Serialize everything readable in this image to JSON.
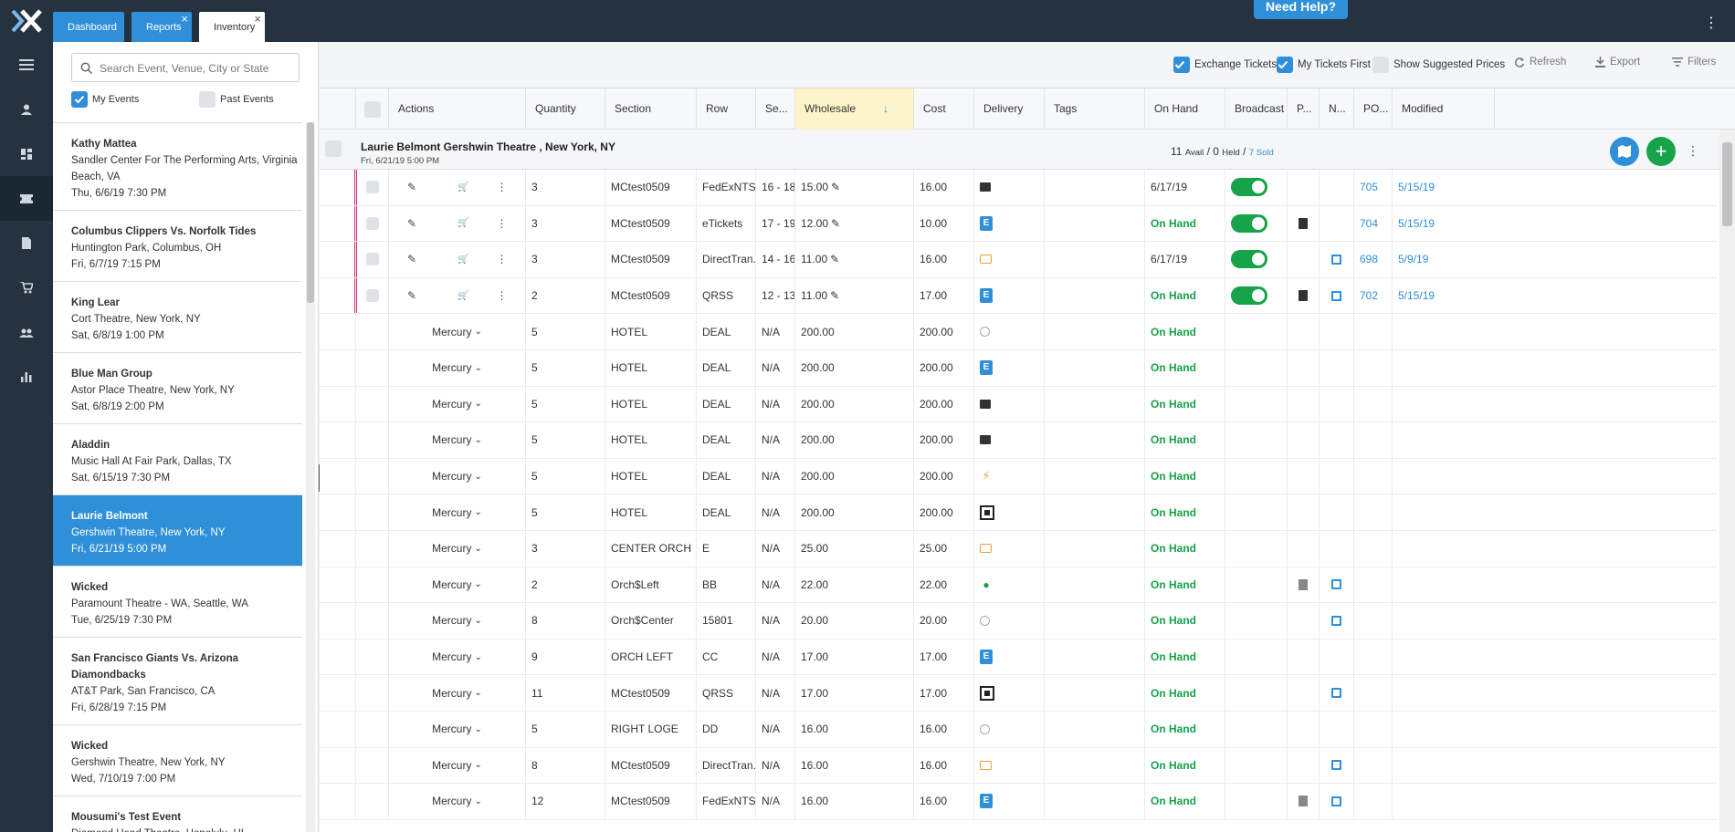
{
  "tabs": [
    {
      "label": "Dashboard",
      "closable": false
    },
    {
      "label": "Reports",
      "closable": true
    },
    {
      "label": "Inventory",
      "closable": true,
      "active": true
    }
  ],
  "help_label": "Need Help?",
  "rail": [
    "menu-icon",
    "user-icon",
    "dashboard-icon",
    "ticket-icon",
    "document-icon",
    "cart-icon",
    "group-icon",
    "chart-icon"
  ],
  "events_panel": {
    "search_placeholder": "Search Event, Venue, City or State",
    "my_events_label": "My Events",
    "past_events_label": "Past Events",
    "events": [
      {
        "name": "Kathy Mattea",
        "venue": "Sandler Center For The Performing Arts, Virginia Beach, VA",
        "date": "Thu, 6/6/19 7:30 PM"
      },
      {
        "name": "Columbus Clippers Vs. Norfolk Tides",
        "venue": "Huntington Park, Columbus, OH",
        "date": "Fri, 6/7/19 7:15 PM"
      },
      {
        "name": "King Lear",
        "venue": "Cort Theatre, New York, NY",
        "date": "Sat, 6/8/19 1:00 PM"
      },
      {
        "name": "Blue Man Group",
        "venue": "Astor Place Theatre, New York, NY",
        "date": "Sat, 6/8/19 2:00 PM"
      },
      {
        "name": "Aladdin",
        "venue": "Music Hall At Fair Park, Dallas, TX",
        "date": "Sat, 6/15/19 7:30 PM"
      },
      {
        "name": "Laurie Belmont",
        "venue": "Gershwin Theatre, New York, NY",
        "date": "Fri, 6/21/19 5:00 PM",
        "active": true
      },
      {
        "name": "Wicked",
        "venue": "Paramount Theatre - WA, Seattle, WA",
        "date": "Tue, 6/25/19 7:30 PM"
      },
      {
        "name": "San Francisco Giants Vs. Arizona Diamondbacks",
        "venue": "AT&T Park, San Francisco, CA",
        "date": "Fri, 6/28/19 7:15 PM"
      },
      {
        "name": "Wicked",
        "venue": "Gershwin Theatre, New York, NY",
        "date": "Wed, 7/10/19 7:00 PM"
      },
      {
        "name": "Mousumi's Test Event",
        "venue": "Diamond Head Theatre, Honolulu, HI",
        "date": ""
      }
    ]
  },
  "toolbar": {
    "exchange_tickets": "Exchange Tickets",
    "my_tickets_first": "My Tickets First",
    "show_suggested": "Show Suggested Prices",
    "refresh": "Refresh",
    "export": "Export",
    "filters": "Filters"
  },
  "columns": [
    "Actions",
    "Quantity",
    "Section",
    "Row",
    "Se...",
    "Wholesale",
    "Cost",
    "Delivery",
    "Tags",
    "On Hand",
    "Broadcast",
    "P...",
    "N...",
    "PO...",
    "Modified"
  ],
  "sort_arrow": "↓",
  "group": {
    "title": "Laurie Belmont  Gershwin Theatre , New York, NY",
    "date": "Fri, 6/21/19 5:00 PM",
    "avail_count": "11",
    "avail_label": "Avail",
    "held_count": "0",
    "held_label": "Held",
    "sold_text": "7 Sold"
  },
  "rows": [
    {
      "type": "own",
      "qty": "3",
      "section": "MCtest0509",
      "row": "FedExNTSD",
      "seats": "16 - 18",
      "wholesale": "15.00",
      "cost": "16.00",
      "delivery": "truck",
      "onhand": "6/17/19",
      "broadcast": true,
      "p": "",
      "n": "",
      "po": "705",
      "modified": "5/15/19"
    },
    {
      "type": "own",
      "qty": "3",
      "section": "MCtest0509",
      "row": "eTickets",
      "seats": "17 - 19",
      "wholesale": "12.00",
      "cost": "10.00",
      "delivery": "eticket",
      "onhand": "On Hand",
      "broadcast": true,
      "p": "doc",
      "n": "",
      "po": "704",
      "modified": "5/15/19"
    },
    {
      "type": "own",
      "qty": "3",
      "section": "MCtest0509",
      "row": "DirectTran...",
      "seats": "14 - 16",
      "wholesale": "11.00",
      "cost": "16.00",
      "delivery": "direct",
      "onhand": "6/17/19",
      "broadcast": true,
      "p": "",
      "n": "note",
      "po": "698",
      "modified": "5/9/19"
    },
    {
      "type": "own",
      "qty": "2",
      "section": "MCtest0509",
      "row": "QRSS",
      "seats": "12 - 13",
      "wholesale": "11.00",
      "cost": "17.00",
      "delivery": "eticket",
      "onhand": "On Hand",
      "broadcast": true,
      "p": "doc",
      "n": "note",
      "po": "702",
      "modified": "5/15/19"
    },
    {
      "type": "ex",
      "action": "Mercury",
      "qty": "5",
      "section": "HOTEL",
      "row": "DEAL",
      "seats": "N/A",
      "wholesale": "200.00",
      "cost": "200.00",
      "delivery": "globe",
      "onhand": "On Hand",
      "p": "",
      "n": ""
    },
    {
      "type": "ex",
      "action": "Mercury",
      "qty": "5",
      "section": "HOTEL",
      "row": "DEAL",
      "seats": "N/A",
      "wholesale": "200.00",
      "cost": "200.00",
      "delivery": "eticket",
      "onhand": "On Hand",
      "p": "",
      "n": ""
    },
    {
      "type": "ex",
      "action": "Mercury",
      "qty": "5",
      "section": "HOTEL",
      "row": "DEAL",
      "seats": "N/A",
      "wholesale": "200.00",
      "cost": "200.00",
      "delivery": "truck",
      "onhand": "On Hand",
      "p": "",
      "n": ""
    },
    {
      "type": "ex",
      "action": "Mercury",
      "qty": "5",
      "section": "HOTEL",
      "row": "DEAL",
      "seats": "N/A",
      "wholesale": "200.00",
      "cost": "200.00",
      "delivery": "truck",
      "onhand": "On Hand",
      "p": "",
      "n": ""
    },
    {
      "type": "ex",
      "action": "Mercury",
      "qty": "5",
      "section": "HOTEL",
      "row": "DEAL",
      "seats": "N/A",
      "wholesale": "200.00",
      "cost": "200.00",
      "delivery": "flash",
      "onhand": "On Hand",
      "p": "",
      "n": ""
    },
    {
      "type": "ex",
      "action": "Mercury",
      "qty": "5",
      "section": "HOTEL",
      "row": "DEAL",
      "seats": "N/A",
      "wholesale": "200.00",
      "cost": "200.00",
      "delivery": "qr",
      "onhand": "On Hand",
      "p": "",
      "n": ""
    },
    {
      "type": "ex",
      "action": "Mercury",
      "qty": "3",
      "section": "CENTER ORCH",
      "row": "E",
      "seats": "N/A",
      "wholesale": "25.00",
      "cost": "25.00",
      "delivery": "direct",
      "onhand": "On Hand",
      "p": "",
      "n": ""
    },
    {
      "type": "ex",
      "action": "Mercury",
      "qty": "2",
      "section": "Orch$Left",
      "row": "BB",
      "seats": "N/A",
      "wholesale": "22.00",
      "cost": "22.00",
      "delivery": "pin",
      "onhand": "On Hand",
      "p": "docgray",
      "n": "note"
    },
    {
      "type": "ex",
      "action": "Mercury",
      "qty": "8",
      "section": "Orch$Center",
      "row": "15801",
      "seats": "N/A",
      "wholesale": "20.00",
      "cost": "20.00",
      "delivery": "globe",
      "onhand": "On Hand",
      "p": "",
      "n": "note"
    },
    {
      "type": "ex",
      "action": "Mercury",
      "qty": "9",
      "section": "ORCH LEFT",
      "row": "CC",
      "seats": "N/A",
      "wholesale": "17.00",
      "cost": "17.00",
      "delivery": "eticket",
      "onhand": "On Hand",
      "p": "",
      "n": ""
    },
    {
      "type": "ex",
      "action": "Mercury",
      "qty": "11",
      "section": "MCtest0509",
      "row": "QRSS",
      "seats": "N/A",
      "wholesale": "17.00",
      "cost": "17.00",
      "delivery": "qr",
      "onhand": "On Hand",
      "p": "",
      "n": "note"
    },
    {
      "type": "ex",
      "action": "Mercury",
      "qty": "5",
      "section": "RIGHT LOGE",
      "row": "DD",
      "seats": "N/A",
      "wholesale": "16.00",
      "cost": "16.00",
      "delivery": "globe",
      "onhand": "On Hand",
      "p": "",
      "n": ""
    },
    {
      "type": "ex",
      "action": "Mercury",
      "qty": "8",
      "section": "MCtest0509",
      "row": "DirectTran...",
      "seats": "N/A",
      "wholesale": "16.00",
      "cost": "16.00",
      "delivery": "direct",
      "onhand": "On Hand",
      "p": "",
      "n": "note"
    },
    {
      "type": "ex",
      "action": "Mercury",
      "qty": "12",
      "section": "MCtest0509",
      "row": "FedExNTSD",
      "seats": "N/A",
      "wholesale": "16.00",
      "cost": "16.00",
      "delivery": "eticket",
      "onhand": "On Hand",
      "p": "docgray",
      "n": "note"
    }
  ],
  "colors": {
    "accent": "#2f8fd9",
    "nav": "#253341",
    "onhand": "#16a34a",
    "flag": "#e5327a"
  }
}
